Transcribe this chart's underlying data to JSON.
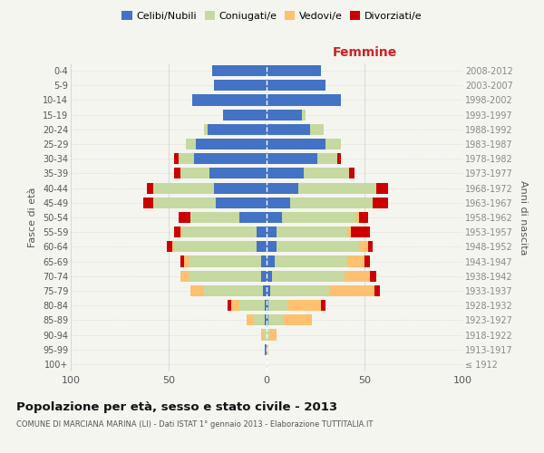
{
  "age_groups": [
    "100+",
    "95-99",
    "90-94",
    "85-89",
    "80-84",
    "75-79",
    "70-74",
    "65-69",
    "60-64",
    "55-59",
    "50-54",
    "45-49",
    "40-44",
    "35-39",
    "30-34",
    "25-29",
    "20-24",
    "15-19",
    "10-14",
    "5-9",
    "0-4"
  ],
  "birth_years": [
    "≤ 1912",
    "1913-1917",
    "1918-1922",
    "1923-1927",
    "1928-1932",
    "1933-1937",
    "1938-1942",
    "1943-1947",
    "1948-1952",
    "1953-1957",
    "1958-1962",
    "1963-1967",
    "1968-1972",
    "1973-1977",
    "1978-1982",
    "1983-1987",
    "1988-1992",
    "1993-1997",
    "1998-2002",
    "2003-2007",
    "2008-2012"
  ],
  "males": {
    "celibi": [
      0,
      1,
      0,
      1,
      1,
      2,
      3,
      3,
      5,
      5,
      14,
      26,
      27,
      29,
      37,
      36,
      30,
      22,
      38,
      27,
      28
    ],
    "coniugati": [
      0,
      0,
      2,
      6,
      13,
      30,
      37,
      37,
      42,
      38,
      25,
      32,
      31,
      15,
      8,
      5,
      2,
      0,
      0,
      0,
      0
    ],
    "vedovi": [
      0,
      0,
      1,
      3,
      4,
      7,
      4,
      2,
      1,
      1,
      0,
      0,
      0,
      0,
      0,
      0,
      0,
      0,
      0,
      0,
      0
    ],
    "divorziati": [
      0,
      0,
      0,
      0,
      2,
      0,
      0,
      2,
      3,
      3,
      6,
      5,
      3,
      3,
      2,
      0,
      0,
      0,
      0,
      0,
      0
    ]
  },
  "females": {
    "nubili": [
      0,
      0,
      0,
      1,
      1,
      2,
      3,
      4,
      5,
      5,
      8,
      12,
      16,
      19,
      26,
      30,
      22,
      18,
      38,
      30,
      28
    ],
    "coniugate": [
      0,
      0,
      2,
      8,
      10,
      30,
      37,
      37,
      42,
      36,
      38,
      42,
      40,
      23,
      10,
      8,
      7,
      2,
      0,
      0,
      0
    ],
    "vedove": [
      0,
      1,
      3,
      14,
      17,
      23,
      13,
      9,
      5,
      2,
      1,
      0,
      0,
      0,
      0,
      0,
      0,
      0,
      0,
      0,
      0
    ],
    "divorziate": [
      0,
      0,
      0,
      0,
      2,
      3,
      3,
      3,
      2,
      10,
      5,
      8,
      6,
      3,
      2,
      0,
      0,
      0,
      0,
      0,
      0
    ]
  },
  "colors": {
    "celibi": "#4472c4",
    "coniugati": "#c5d9a0",
    "vedovi": "#ffc06f",
    "divorziati": "#cc0000"
  },
  "xlim": 100,
  "title": "Popolazione per età, sesso e stato civile - 2013",
  "subtitle": "COMUNE DI MARCIANA MARINA (LI) - Dati ISTAT 1° gennaio 2013 - Elaborazione TUTTITALIA.IT",
  "ylabel_left": "Fasce di età",
  "ylabel_right": "Anni di nascita",
  "xlabel_right": "Femmine",
  "bg_color": "#f5f5f0",
  "grid_color": "#cccccc"
}
